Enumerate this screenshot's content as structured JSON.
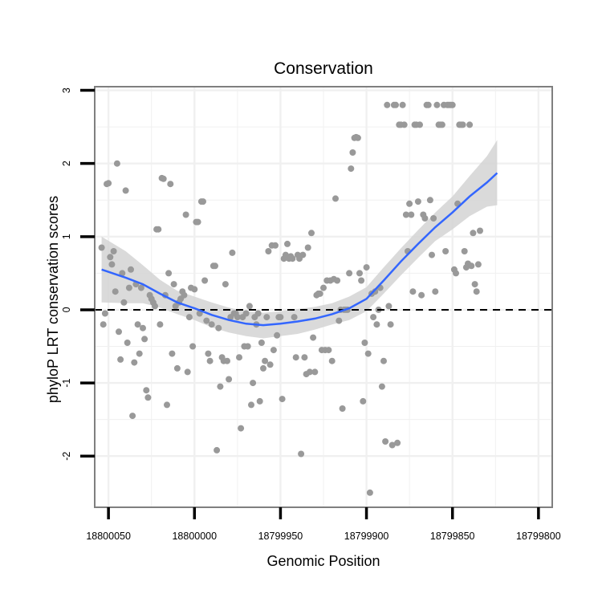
{
  "chart_data": {
    "type": "scatter",
    "title": "Conservation",
    "xlabel": "Genomic Position",
    "ylabel": "phyloP LRT conservation scores",
    "x_reversed": true,
    "xlim": [
      18800058,
      18799792
    ],
    "ylim": [
      -2.7,
      3.05
    ],
    "x_ticks": [
      {
        "value": 18800050,
        "label": "18800050"
      },
      {
        "value": 18800000,
        "label": "18800000"
      },
      {
        "value": 18799950,
        "label": "18799950"
      },
      {
        "value": 18799900,
        "label": "18799900"
      },
      {
        "value": 18799850,
        "label": "18799850"
      },
      {
        "value": 18799800,
        "label": "18799800"
      }
    ],
    "y_ticks": [
      {
        "value": -2,
        "label": "-2"
      },
      {
        "value": -1,
        "label": "-1"
      },
      {
        "value": 0,
        "label": "0"
      },
      {
        "value": 1,
        "label": "1"
      },
      {
        "value": 2,
        "label": "2"
      },
      {
        "value": 3,
        "label": "3"
      }
    ],
    "grid": true,
    "reference_line": {
      "y": 0,
      "style": "dashed",
      "color": "#000000"
    },
    "colors": {
      "points": "#999999",
      "smooth": "#3366ff",
      "ribbon": "#d3d3d3",
      "grid": "#f0f0f0",
      "frame": "#7f7f7f"
    },
    "points": [
      [
        18800054,
        0.85
      ],
      [
        18800053,
        -0.2
      ],
      [
        18800052,
        -0.05
      ],
      [
        18800051,
        1.72
      ],
      [
        18800050,
        1.73
      ],
      [
        18800049,
        0.72
      ],
      [
        18800048,
        0.62
      ],
      [
        18800047,
        0.8
      ],
      [
        18800046,
        0.25
      ],
      [
        18800045,
        2.0
      ],
      [
        18800044,
        -0.3
      ],
      [
        18800043,
        -0.68
      ],
      [
        18800042,
        0.5
      ],
      [
        18800041,
        0.1
      ],
      [
        18800040,
        1.63
      ],
      [
        18800039,
        -0.45
      ],
      [
        18800038,
        0.3
      ],
      [
        18800037,
        0.55
      ],
      [
        18800036,
        -1.45
      ],
      [
        18800035,
        -0.72
      ],
      [
        18800034,
        0.35
      ],
      [
        18800033,
        -0.2
      ],
      [
        18800032,
        -0.6
      ],
      [
        18800031,
        0.3
      ],
      [
        18800030,
        -0.25
      ],
      [
        18800029,
        -0.4
      ],
      [
        18800028,
        -1.1
      ],
      [
        18800027,
        -1.2
      ],
      [
        18800026,
        0.2
      ],
      [
        18800025,
        0.15
      ],
      [
        18800024,
        0.1
      ],
      [
        18800023,
        0.05
      ],
      [
        18800022,
        1.1
      ],
      [
        18800021,
        1.1
      ],
      [
        18800020,
        -0.2
      ],
      [
        18800019,
        1.8
      ],
      [
        18800018,
        1.79
      ],
      [
        18800017,
        0.2
      ],
      [
        18800016,
        -1.3
      ],
      [
        18800015,
        0.5
      ],
      [
        18800014,
        1.72
      ],
      [
        18800013,
        -0.6
      ],
      [
        18800012,
        0.35
      ],
      [
        18800011,
        0.05
      ],
      [
        18800010,
        -0.8
      ],
      [
        18800009,
        0.1
      ],
      [
        18800008,
        0.15
      ],
      [
        18800007,
        0.25
      ],
      [
        18800006,
        0.2
      ],
      [
        18800005,
        1.3
      ],
      [
        18800004,
        -0.85
      ],
      [
        18800003,
        -0.1
      ],
      [
        18800002,
        0.3
      ],
      [
        18800001,
        -0.5
      ],
      [
        18800000,
        0.28
      ],
      [
        18799999,
        1.2
      ],
      [
        18799998,
        1.2
      ],
      [
        18799997,
        -0.05
      ],
      [
        18799996,
        1.48
      ],
      [
        18799995,
        1.48
      ],
      [
        18799994,
        0.4
      ],
      [
        18799993,
        -0.15
      ],
      [
        18799992,
        -0.6
      ],
      [
        18799991,
        -0.7
      ],
      [
        18799990,
        -0.2
      ],
      [
        18799989,
        0.6
      ],
      [
        18799988,
        0.6
      ],
      [
        18799987,
        -1.92
      ],
      [
        18799986,
        -0.25
      ],
      [
        18799985,
        -1.05
      ],
      [
        18799984,
        -0.65
      ],
      [
        18799983,
        -0.7
      ],
      [
        18799982,
        0.35
      ],
      [
        18799981,
        -0.7
      ],
      [
        18799980,
        -0.95
      ],
      [
        18799979,
        -0.1
      ],
      [
        18799978,
        0.78
      ],
      [
        18799977,
        -0.05
      ],
      [
        18799976,
        -0.05
      ],
      [
        18799975,
        -0.1
      ],
      [
        18799974,
        -0.65
      ],
      [
        18799973,
        -1.62
      ],
      [
        18799972,
        -0.1
      ],
      [
        18799971,
        -0.5
      ],
      [
        18799970,
        -0.05
      ],
      [
        18799969,
        -0.5
      ],
      [
        18799968,
        0.05
      ],
      [
        18799967,
        -1.3
      ],
      [
        18799966,
        -1.0
      ],
      [
        18799965,
        -0.1
      ],
      [
        18799964,
        -0.2
      ],
      [
        18799963,
        -0.05
      ],
      [
        18799962,
        -1.25
      ],
      [
        18799961,
        -0.45
      ],
      [
        18799960,
        -0.8
      ],
      [
        18799959,
        -0.7
      ],
      [
        18799958,
        -0.1
      ],
      [
        18799957,
        0.8
      ],
      [
        18799956,
        -0.75
      ],
      [
        18799955,
        0.88
      ],
      [
        18799954,
        -0.55
      ],
      [
        18799953,
        0.88
      ],
      [
        18799952,
        -0.35
      ],
      [
        18799951,
        -0.1
      ],
      [
        18799950,
        -0.1
      ],
      [
        18799949,
        -1.22
      ],
      [
        18799948,
        0.7
      ],
      [
        18799947,
        0.75
      ],
      [
        18799946,
        0.9
      ],
      [
        18799945,
        0.7
      ],
      [
        18799944,
        0.73
      ],
      [
        18799943,
        0.7
      ],
      [
        18799942,
        -0.1
      ],
      [
        18799941,
        -0.65
      ],
      [
        18799940,
        0.75
      ],
      [
        18799939,
        0.7
      ],
      [
        18799938,
        -1.97
      ],
      [
        18799937,
        0.75
      ],
      [
        18799936,
        -0.65
      ],
      [
        18799935,
        -0.88
      ],
      [
        18799934,
        0.85
      ],
      [
        18799933,
        -0.85
      ],
      [
        18799932,
        1.05
      ],
      [
        18799931,
        -0.38
      ],
      [
        18799930,
        -0.85
      ],
      [
        18799929,
        0.2
      ],
      [
        18799928,
        0.22
      ],
      [
        18799927,
        0.22
      ],
      [
        18799926,
        -0.55
      ],
      [
        18799925,
        0.3
      ],
      [
        18799924,
        -0.55
      ],
      [
        18799923,
        0.4
      ],
      [
        18799922,
        -0.55
      ],
      [
        18799921,
        0.4
      ],
      [
        18799920,
        -0.7
      ],
      [
        18799919,
        0.42
      ],
      [
        18799918,
        1.52
      ],
      [
        18799917,
        0.4
      ],
      [
        18799916,
        -0.15
      ],
      [
        18799915,
        0.0
      ],
      [
        18799914,
        -1.35
      ],
      [
        18799913,
        0.0
      ],
      [
        18799912,
        0.0
      ],
      [
        18799911,
        0.0
      ],
      [
        18799910,
        0.5
      ],
      [
        18799909,
        1.93
      ],
      [
        18799908,
        2.15
      ],
      [
        18799907,
        2.35
      ],
      [
        18799906,
        2.36
      ],
      [
        18799905,
        2.35
      ],
      [
        18799904,
        0.5
      ],
      [
        18799903,
        0.4
      ],
      [
        18799902,
        -1.25
      ],
      [
        18799901,
        -0.45
      ],
      [
        18799900,
        0.58
      ],
      [
        18799899,
        -0.6
      ],
      [
        18799898,
        -2.5
      ],
      [
        18799897,
        0.22
      ],
      [
        18799896,
        -0.1
      ],
      [
        18799895,
        0.25
      ],
      [
        18799894,
        -0.2
      ],
      [
        18799893,
        0.0
      ],
      [
        18799892,
        0.3
      ],
      [
        18799891,
        -1.05
      ],
      [
        18799890,
        -0.7
      ],
      [
        18799889,
        -1.8
      ],
      [
        18799888,
        2.8
      ],
      [
        18799887,
        0.05
      ],
      [
        18799886,
        -0.2
      ],
      [
        18799885,
        -1.85
      ],
      [
        18799884,
        2.8
      ],
      [
        18799883,
        2.8
      ],
      [
        18799882,
        -1.82
      ],
      [
        18799881,
        2.53
      ],
      [
        18799880,
        2.53
      ],
      [
        18799879,
        2.8
      ],
      [
        18799878,
        2.53
      ],
      [
        18799877,
        1.3
      ],
      [
        18799876,
        0.8
      ],
      [
        18799875,
        1.45
      ],
      [
        18799874,
        1.3
      ],
      [
        18799873,
        0.25
      ],
      [
        18799872,
        2.53
      ],
      [
        18799871,
        2.53
      ],
      [
        18799870,
        1.48
      ],
      [
        18799869,
        2.53
      ],
      [
        18799868,
        0.2
      ],
      [
        18799867,
        1.3
      ],
      [
        18799866,
        1.25
      ],
      [
        18799865,
        2.8
      ],
      [
        18799864,
        2.8
      ],
      [
        18799863,
        1.5
      ],
      [
        18799862,
        0.75
      ],
      [
        18799861,
        1.25
      ],
      [
        18799860,
        0.25
      ],
      [
        18799859,
        2.8
      ],
      [
        18799858,
        2.53
      ],
      [
        18799857,
        2.53
      ],
      [
        18799856,
        2.53
      ],
      [
        18799855,
        2.8
      ],
      [
        18799854,
        0.8
      ],
      [
        18799853,
        2.8
      ],
      [
        18799852,
        2.8
      ],
      [
        18799851,
        2.8
      ],
      [
        18799850,
        2.8
      ],
      [
        18799849,
        0.55
      ],
      [
        18799848,
        0.5
      ],
      [
        18799847,
        1.45
      ],
      [
        18799846,
        2.53
      ],
      [
        18799845,
        2.53
      ],
      [
        18799844,
        2.53
      ],
      [
        18799843,
        0.8
      ],
      [
        18799842,
        0.58
      ],
      [
        18799841,
        0.63
      ],
      [
        18799840,
        2.53
      ],
      [
        18799839,
        0.6
      ],
      [
        18799838,
        1.05
      ],
      [
        18799837,
        0.35
      ],
      [
        18799836,
        0.25
      ],
      [
        18799835,
        0.62
      ],
      [
        18799834,
        1.08
      ]
    ],
    "smooth": [
      [
        18800054,
        0.55
      ],
      [
        18800040,
        0.44
      ],
      [
        18800030,
        0.35
      ],
      [
        18800020,
        0.22
      ],
      [
        18800010,
        0.1
      ],
      [
        18800000,
        0.02
      ],
      [
        18799990,
        -0.07
      ],
      [
        18799980,
        -0.14
      ],
      [
        18799970,
        -0.19
      ],
      [
        18799960,
        -0.21
      ],
      [
        18799950,
        -0.19
      ],
      [
        18799940,
        -0.16
      ],
      [
        18799930,
        -0.12
      ],
      [
        18799920,
        -0.06
      ],
      [
        18799910,
        0.02
      ],
      [
        18799900,
        0.15
      ],
      [
        18799890,
        0.4
      ],
      [
        18799880,
        0.66
      ],
      [
        18799870,
        0.9
      ],
      [
        18799860,
        1.13
      ],
      [
        18799850,
        1.33
      ],
      [
        18799840,
        1.55
      ],
      [
        18799830,
        1.74
      ],
      [
        18799824,
        1.87
      ]
    ],
    "ribbon": [
      [
        18800054,
        0.1,
        1.0
      ],
      [
        18800040,
        0.09,
        0.8
      ],
      [
        18800030,
        0.09,
        0.61
      ],
      [
        18800020,
        0.03,
        0.41
      ],
      [
        18800010,
        -0.06,
        0.26
      ],
      [
        18800000,
        -0.14,
        0.18
      ],
      [
        18799990,
        -0.24,
        0.1
      ],
      [
        18799980,
        -0.31,
        0.03
      ],
      [
        18799970,
        -0.36,
        -0.02
      ],
      [
        18799960,
        -0.39,
        -0.04
      ],
      [
        18799950,
        -0.36,
        -0.02
      ],
      [
        18799940,
        -0.33,
        0.01
      ],
      [
        18799930,
        -0.27,
        0.04
      ],
      [
        18799920,
        -0.2,
        0.09
      ],
      [
        18799910,
        -0.14,
        0.18
      ],
      [
        18799900,
        -0.02,
        0.31
      ],
      [
        18799890,
        0.22,
        0.58
      ],
      [
        18799880,
        0.47,
        0.84
      ],
      [
        18799870,
        0.71,
        1.09
      ],
      [
        18799860,
        0.94,
        1.33
      ],
      [
        18799850,
        1.1,
        1.55
      ],
      [
        18799840,
        1.28,
        1.83
      ],
      [
        18799830,
        1.41,
        2.1
      ],
      [
        18799824,
        1.43,
        2.32
      ]
    ]
  }
}
